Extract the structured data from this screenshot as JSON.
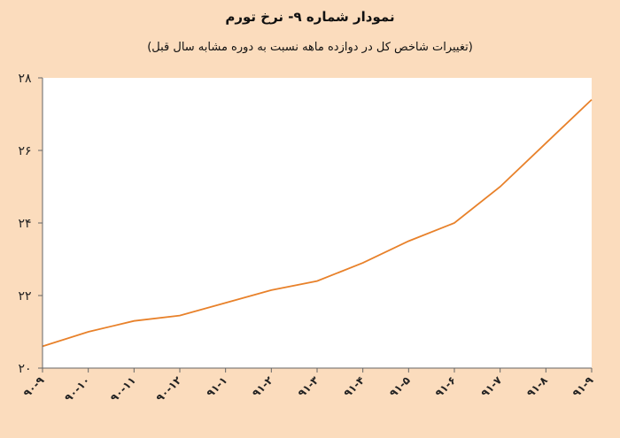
{
  "chart_data": {
    "type": "line",
    "title": "نمودار شماره ۹- نرخ تورم",
    "subtitle": "(تغییرات شاخص کل در دوازده ماهه نسبت به دوره مشابه سال قبل)",
    "categories": [
      "۹۰-۹",
      "۹۰-۱۰",
      "۹۰-۱۱",
      "۹۰-۱۲",
      "۹۱-۱",
      "۹۱-۲",
      "۹۱-۳",
      "۹۱-۴",
      "۹۱-۵",
      "۹۱-۶",
      "۹۱-۷",
      "۹۱-۸",
      "۹۱-۹"
    ],
    "series": [
      {
        "values": [
          20.6,
          21.0,
          21.3,
          21.45,
          21.8,
          22.15,
          22.4,
          22.9,
          23.5,
          24.0,
          25.0,
          26.2,
          27.4
        ]
      }
    ],
    "ylim": [
      20,
      28
    ],
    "yticks": [
      20,
      22,
      24,
      26,
      28
    ],
    "ytick_labels": [
      "۲۰",
      "۲۲",
      "۲۴",
      "۲۶",
      "۲۸"
    ],
    "line_color": "#e8812a",
    "plot_background": "#ffffff",
    "page_background": "#fbdcbd",
    "grid": false
  }
}
